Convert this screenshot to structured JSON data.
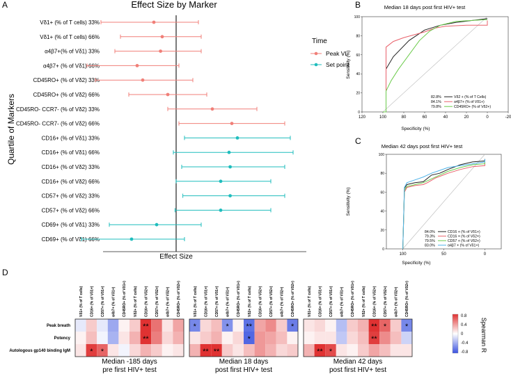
{
  "panels": {
    "A": "A",
    "B": "B",
    "C": "C",
    "D": "D"
  },
  "panel_a": {
    "title": "Effect Size by Marker",
    "ylabel": "Quartile of Markers",
    "xlabel": "Effect Size",
    "legend_title": "Time",
    "legend_items": [
      {
        "label": "Peak VL",
        "color": "#f07f78"
      },
      {
        "label": "Set point",
        "color": "#1fbdbd"
      }
    ]
  },
  "panel_b": {
    "title": "Median 18 days post first HIV+ test",
    "xlabel": "Specificity (%)",
    "ylabel": "Sensitivity (%)",
    "legend": [
      {
        "pct": "82.8%",
        "label": "Vδ2 + (% of T Cells)",
        "color": "#222222"
      },
      {
        "pct": "84.1%",
        "label": "α4β7+ (% of Vδ1+)",
        "color": "#e8606a"
      },
      {
        "pct": "79.8%",
        "label": "CD45RO+ (% of Vδ2+)",
        "color": "#6ccb4c"
      }
    ]
  },
  "panel_c": {
    "title": "Median 42 days post first HIV+ test",
    "xlabel": "Specificity (%)",
    "ylabel": "Sensitivity (%)",
    "legend": [
      {
        "pct": "84.0%",
        "label": "CD16 + (% of Vδ1+)",
        "color": "#222222"
      },
      {
        "pct": "79.3%",
        "label": "CD16 + (% of Vδ2+)",
        "color": "#e8606a"
      },
      {
        "pct": "79.5%",
        "label": "CD57 + (% of Vδ2+)",
        "color": "#6ccb4c"
      },
      {
        "pct": "83.0%",
        "label": "α4β7 + (% of Vδ1+)",
        "color": "#4fb3e8"
      }
    ]
  },
  "panel_d": {
    "columns": [
      "Vδ1+ (% of T cells)",
      "CD16+ (% of Vδ1+)",
      "CD57+ (% of Vδ1+)",
      "α4b7+ (% of Vδ1+)",
      "CD45RO+ (% of Vδ1+)",
      "Vδ2+ (% of T cells)",
      "CD16+ (% of Vδ2+)",
      "CD57+ (% of Vδ2+)",
      "α4b7+ (% of Vδ2+)",
      "CD45RO+ (% of Vδ2+)"
    ],
    "rows": [
      "Peak breath",
      "Potency",
      "Autologous gp140 binding IgM"
    ],
    "captions": [
      [
        "Median -185 days",
        "pre first HIV+ test"
      ],
      [
        "Median 18 days",
        "post first HIV+ test"
      ],
      [
        "Median 42 days",
        "post first HIV+ test"
      ]
    ],
    "colorbar_label": "Spearman R",
    "colorbar_ticks": [
      "0.8",
      "0.4",
      "0",
      "-0.4",
      "-0.8"
    ],
    "sig_mark": "*",
    "heatmaps": [
      {
        "values": [
          [
            -0.1,
            0.2,
            -0.1,
            -0.4,
            0.05,
            0.2,
            0.85,
            0.55,
            0.1,
            0.35
          ],
          [
            0.05,
            0.25,
            -0.05,
            -0.35,
            0.1,
            0.3,
            0.8,
            0.5,
            0.15,
            0.3
          ],
          [
            0.1,
            0.75,
            0.6,
            0.1,
            -0.05,
            0.15,
            0.3,
            0.2,
            0.05,
            0.1
          ]
        ],
        "stars": [
          [
            0,
            0,
            0,
            0,
            0,
            0,
            2,
            0,
            0,
            0
          ],
          [
            0,
            0,
            0,
            0,
            0,
            0,
            2,
            0,
            0,
            0
          ],
          [
            0,
            1,
            1,
            0,
            0,
            0,
            0,
            0,
            0,
            0
          ]
        ]
      },
      {
        "values": [
          [
            -0.55,
            0.15,
            0.25,
            -0.5,
            0.05,
            -0.65,
            0.35,
            0.45,
            0.2,
            -0.6
          ],
          [
            0.1,
            0.2,
            0.3,
            0.05,
            0.15,
            -0.7,
            0.4,
            0.35,
            0.25,
            0.05
          ],
          [
            0.3,
            0.85,
            0.8,
            0.2,
            0.1,
            0.25,
            0.4,
            0.3,
            0.15,
            0.2
          ]
        ],
        "stars": [
          [
            1,
            0,
            0,
            1,
            0,
            2,
            0,
            0,
            0,
            1
          ],
          [
            0,
            0,
            0,
            0,
            0,
            1,
            0,
            0,
            0,
            0
          ],
          [
            0,
            2,
            2,
            0,
            0,
            0,
            0,
            0,
            0,
            0
          ]
        ]
      },
      {
        "values": [
          [
            0.1,
            0.15,
            0.05,
            -0.3,
            0.2,
            0.3,
            0.8,
            0.6,
            0.2,
            -0.55
          ],
          [
            0.05,
            0.1,
            0.1,
            -0.25,
            0.15,
            0.25,
            0.75,
            0.45,
            0.25,
            -0.2
          ],
          [
            0.3,
            0.8,
            0.7,
            0.1,
            0.05,
            0.2,
            0.35,
            0.25,
            0.1,
            0.1
          ]
        ],
        "stars": [
          [
            0,
            0,
            0,
            0,
            0,
            0,
            2,
            1,
            0,
            1
          ],
          [
            0,
            0,
            0,
            0,
            0,
            0,
            2,
            0,
            0,
            0
          ],
          [
            0,
            2,
            1,
            0,
            0,
            0,
            0,
            0,
            0,
            0
          ]
        ]
      }
    ]
  },
  "chart_data": [
    {
      "type": "scatter",
      "title": "Effect Size by Marker",
      "xlabel": "Effect Size",
      "ylabel": "Quartile of Markers",
      "xlim": [
        -1.7,
        2.3
      ],
      "reference_line": 0,
      "categories": [
        "Vδ1+ (% of T cells) 33%",
        "Vδ1+ (% of T cells) 66%",
        "α4β7+(% of Vδ1) 33%",
        "α4β7+ (% of Vδ1) 66%",
        "CD45RO+ (% of Vδ2) 33%",
        "CD45RO+ (% of Vδ2) 66%",
        "CD45RO- CCR7- (% of Vδ2) 33%",
        "CD45RO- CCR7- (% of Vδ2) 66%",
        "CD16+ (% of Vδ1) 33%",
        "CD16+ (% of Vδ1) 66%",
        "CD16+ (% of Vδ2) 33%",
        "CD16+ (% of Vδ2) 66%",
        "CD57+ (% of Vδ2) 33%",
        "CD57+ (% of Vδ2) 66%",
        "CD69+ (% of Vδ1) 33%",
        "CD69+ (% of Vδ1) 66%"
      ],
      "series": [
        {
          "name": "Peak VL",
          "color": "#f07f78",
          "estimate": [
            -0.4,
            -0.25,
            -0.28,
            -0.7,
            -0.6,
            -0.15,
            0.65,
            1.0,
            null,
            null,
            null,
            null,
            null,
            null,
            null,
            null
          ],
          "lower": [
            -1.35,
            -1.0,
            -1.1,
            -1.6,
            -1.45,
            -0.85,
            -0.15,
            0.05,
            null,
            null,
            null,
            null,
            null,
            null,
            null,
            null
          ],
          "upper": [
            0.4,
            0.45,
            0.45,
            0.05,
            0.3,
            0.55,
            1.45,
            1.95,
            null,
            null,
            null,
            null,
            null,
            null,
            null,
            null
          ]
        },
        {
          "name": "Set point",
          "color": "#1fbdbd",
          "estimate": [
            null,
            null,
            null,
            null,
            null,
            null,
            null,
            null,
            1.1,
            0.95,
            0.97,
            0.8,
            0.97,
            0.8,
            -0.35,
            -0.8
          ],
          "lower": [
            null,
            null,
            null,
            null,
            null,
            null,
            null,
            null,
            0.15,
            -0.05,
            0.1,
            0.0,
            0.12,
            -0.02,
            -1.2,
            -1.7
          ],
          "upper": [
            null,
            null,
            null,
            null,
            null,
            null,
            null,
            null,
            2.05,
            2.1,
            1.95,
            1.7,
            1.95,
            1.7,
            0.45,
            0.15
          ]
        }
      ]
    },
    {
      "type": "line",
      "title": "Median 18 days post first HIV+ test",
      "xlabel": "Specificity (%)",
      "ylabel": "Sensitivity (%)",
      "xlim": [
        120,
        -20
      ],
      "ylim": [
        0,
        100
      ],
      "xticks": [
        "120",
        "100",
        "80",
        "60",
        "40",
        "20",
        "0",
        "-20"
      ],
      "yticks": [
        "0",
        "20",
        "40",
        "60",
        "80",
        "100"
      ],
      "series": [
        {
          "name": "Vδ2 + (% of T Cells)",
          "color": "#222222",
          "x": [
            100,
            97,
            97,
            90,
            75,
            60,
            45,
            30,
            15,
            0
          ],
          "y": [
            0,
            0,
            45,
            58,
            75,
            86,
            91,
            94,
            96,
            98
          ]
        },
        {
          "name": "α4β7+ (% of Vδ1+)",
          "color": "#e8606a",
          "x": [
            100,
            97,
            97,
            90,
            80,
            70,
            60,
            50,
            40,
            20,
            0,
            0
          ],
          "y": [
            0,
            0,
            68,
            74,
            78,
            81,
            84,
            88,
            90,
            91,
            91,
            96
          ]
        },
        {
          "name": "CD45RO+ (% of Vδ2+)",
          "color": "#6ccb4c",
          "x": [
            100,
            97,
            97,
            92,
            85,
            75,
            65,
            55,
            45,
            30,
            0
          ],
          "y": [
            0,
            0,
            22,
            33,
            45,
            60,
            75,
            85,
            91,
            95,
            97
          ]
        }
      ]
    },
    {
      "type": "line",
      "title": "Median 42 days post first HIV+ test",
      "xlabel": "Specificity (%)",
      "ylabel": "Sensitivity (%)",
      "xlim": [
        120,
        -20
      ],
      "ylim": [
        0,
        100
      ],
      "xticks": [
        "100",
        "50",
        "0"
      ],
      "yticks": [
        "0",
        "20",
        "40",
        "60",
        "80",
        "100"
      ],
      "series": [
        {
          "name": "CD16 + (% of Vδ1+)",
          "color": "#222222",
          "x": [
            100,
            98,
            95,
            85,
            75,
            65,
            55,
            45,
            30,
            15,
            0,
            0
          ],
          "y": [
            0,
            64,
            68,
            70,
            71,
            78,
            80,
            84,
            89,
            92,
            93,
            95
          ]
        },
        {
          "name": "CD16 + (% of Vδ2+)",
          "color": "#e8606a",
          "x": [
            100,
            98,
            95,
            85,
            75,
            70,
            60,
            45,
            30,
            15,
            0,
            0
          ],
          "y": [
            0,
            60,
            65,
            67,
            68,
            70,
            75,
            80,
            84,
            87,
            88,
            91
          ]
        },
        {
          "name": "CD57 + (% of Vδ2+)",
          "color": "#6ccb4c",
          "x": [
            100,
            98,
            95,
            85,
            75,
            70,
            60,
            45,
            30,
            15,
            0,
            0
          ],
          "y": [
            0,
            62,
            66,
            68,
            70,
            72,
            76,
            82,
            86,
            89,
            90,
            92
          ]
        },
        {
          "name": "α4β7 + (% of Vδ1+)",
          "color": "#4fb3e8",
          "x": [
            100,
            98,
            95,
            85,
            75,
            65,
            55,
            45,
            30,
            15,
            0,
            0
          ],
          "y": [
            0,
            65,
            70,
            73,
            76,
            80,
            83,
            86,
            88,
            90,
            92,
            95
          ]
        }
      ]
    }
  ]
}
